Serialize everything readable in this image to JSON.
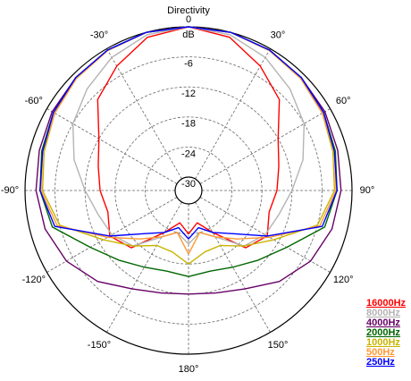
{
  "chart_data": {
    "type": "polar",
    "title": "Directivity",
    "r_unit": "dB",
    "rlim": [
      -30,
      0
    ],
    "rticks": [
      0,
      -6,
      -12,
      -18,
      -24,
      -30
    ],
    "thetaticks": [
      {
        "value": -150,
        "label": "-150°"
      },
      {
        "value": -120,
        "label": "-120°"
      },
      {
        "value": -90,
        "label": "-90°"
      },
      {
        "value": -60,
        "label": "-60°"
      },
      {
        "value": -30,
        "label": "-30°"
      },
      {
        "value": 30,
        "label": "30°"
      },
      {
        "value": 60,
        "label": "60°"
      },
      {
        "value": 90,
        "label": "90°"
      },
      {
        "value": 120,
        "label": "120°"
      },
      {
        "value": 150,
        "label": "150°"
      },
      {
        "value": 180,
        "label": "180°"
      }
    ],
    "legend": "lower right",
    "theta": [
      -180,
      -165,
      -150,
      -135,
      -120,
      -105,
      -90,
      -75,
      -60,
      -45,
      -30,
      -15,
      0,
      15,
      30,
      45,
      60,
      75,
      90,
      105,
      120,
      135,
      150,
      165,
      180
    ],
    "series": [
      {
        "name": "16000Hz",
        "color": "#ff0000",
        "values": [
          -24,
          -26,
          -23,
          -16.5,
          -14.5,
          -16,
          -15,
          -14,
          -12,
          -7,
          -4,
          -1,
          0,
          -1,
          -4,
          -7,
          -12,
          -14,
          -15,
          -16,
          -14.5,
          -16.5,
          -23,
          -26,
          -24
        ]
      },
      {
        "name": "8000Hz",
        "color": "#b4b4b4",
        "values": [
          -22,
          -24,
          -22,
          -17,
          -15,
          -14,
          -12,
          -9,
          -6,
          -4,
          -2,
          -0.5,
          0,
          -0.5,
          -2,
          -4,
          -6,
          -9,
          -12,
          -14,
          -15,
          -17,
          -22,
          -24,
          -22
        ]
      },
      {
        "name": "4000Hz",
        "color": "#660066",
        "values": [
          -12,
          -11.5,
          -10,
          -7,
          -4.5,
          -3,
          -2.2,
          -1.8,
          -1.2,
          -0.8,
          -0.3,
          0,
          0,
          0,
          -0.3,
          -0.8,
          -1.2,
          -1.8,
          -2.2,
          -3,
          -4.5,
          -7,
          -10,
          -11.5,
          -12
        ]
      },
      {
        "name": "2000Hz",
        "color": "#006600",
        "values": [
          -15.5,
          -16,
          -15,
          -13,
          -10,
          -4.5,
          -3,
          -2.3,
          -1.5,
          -0.8,
          -0.3,
          0,
          0,
          0,
          -0.3,
          -0.8,
          -1.5,
          -2.3,
          -3,
          -4.5,
          -10,
          -13,
          -15,
          -16,
          -15.5
        ]
      },
      {
        "name": "1000Hz",
        "color": "#c8b400",
        "values": [
          -18,
          -20,
          -20,
          -17,
          -13,
          -6,
          -3.5,
          -2.8,
          -1.8,
          -1,
          -0.4,
          0,
          0,
          0,
          -0.4,
          -1,
          -1.8,
          -2.8,
          -3.5,
          -6,
          -13,
          -17,
          -20,
          -20,
          -18
        ]
      },
      {
        "name": "500Hz",
        "color": "#ff9933",
        "values": [
          -20,
          -24,
          -22,
          -19,
          -14,
          -5.5,
          -3.2,
          -2.5,
          -1.8,
          -1,
          -0.4,
          0,
          0,
          0,
          -0.4,
          -1,
          -1.8,
          -2.5,
          -3.2,
          -5.5,
          -14,
          -19,
          -22,
          -24,
          -20
        ]
      },
      {
        "name": "250Hz",
        "color": "#0000ff",
        "values": [
          -23,
          -25,
          -23,
          -20.5,
          -14.5,
          -5,
          -3,
          -2.5,
          -1.5,
          -0.8,
          -0.3,
          0,
          0,
          0,
          -0.3,
          -0.8,
          -1.5,
          -2.5,
          -3,
          -5,
          -14.5,
          -20.5,
          -23,
          -25,
          -23
        ]
      }
    ]
  }
}
